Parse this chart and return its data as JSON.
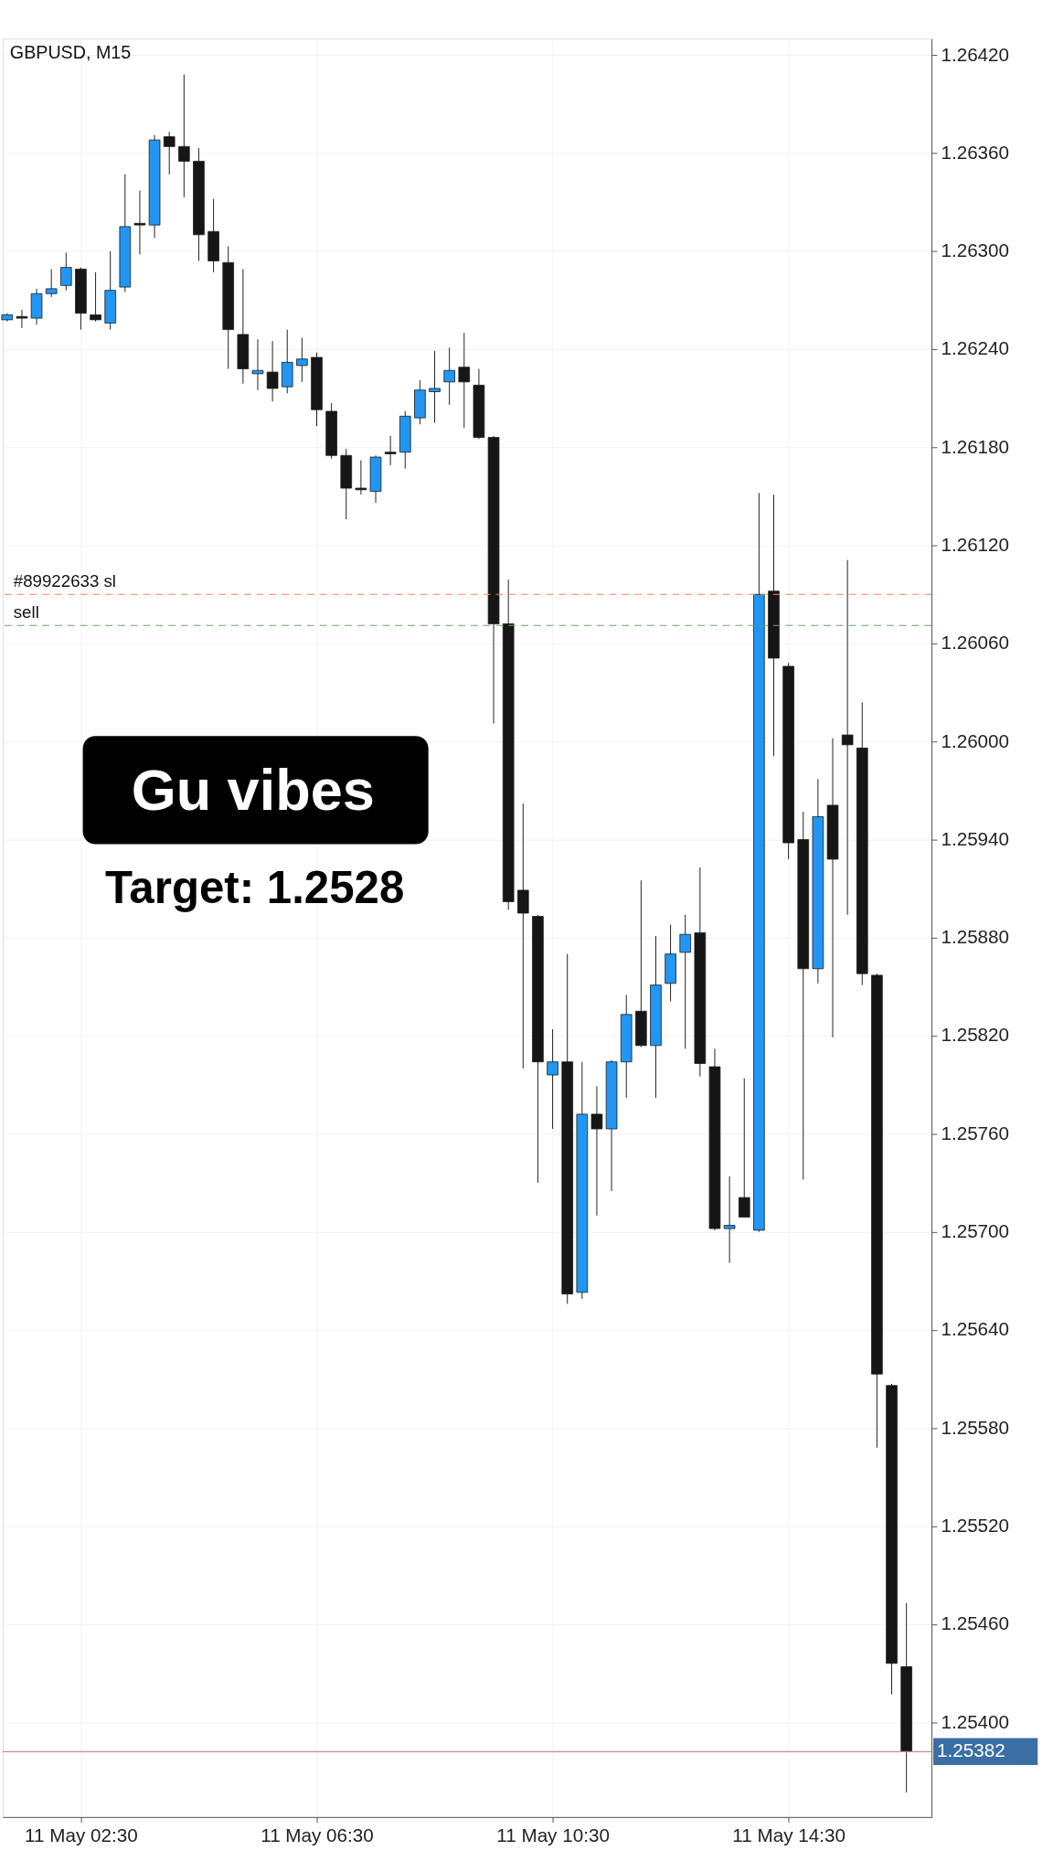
{
  "chart_data": {
    "type": "candlestick",
    "title": "GBPUSD, M15",
    "categories": [
      null,
      null,
      null,
      null,
      null,
      "11 May 02:30",
      null,
      null,
      null,
      null,
      null,
      null,
      null,
      null,
      null,
      null,
      null,
      null,
      null,
      null,
      null,
      "11 May 06:30",
      null,
      null,
      null,
      null,
      null,
      null,
      null,
      null,
      null,
      null,
      null,
      null,
      null,
      null,
      null,
      "11 May 10:30",
      null,
      null,
      null,
      null,
      null,
      null,
      null,
      null,
      null,
      null,
      null,
      null,
      null,
      null,
      null,
      "11 May 14:30",
      null,
      null,
      null,
      null,
      null,
      null,
      null,
      null
    ],
    "ohlc": [
      [
        1.26258,
        1.26262,
        1.26257,
        1.26261
      ],
      [
        1.2626,
        1.26264,
        1.26253,
        1.26259
      ],
      [
        1.26259,
        1.26277,
        1.26255,
        1.26274
      ],
      [
        1.26274,
        1.26289,
        1.26272,
        1.26277
      ],
      [
        1.26279,
        1.26299,
        1.26276,
        1.2629
      ],
      [
        1.26289,
        1.2629,
        1.26252,
        1.26262
      ],
      [
        1.26261,
        1.26287,
        1.26257,
        1.26258
      ],
      [
        1.26256,
        1.263,
        1.26252,
        1.26276
      ],
      [
        1.26278,
        1.26347,
        1.26275,
        1.26315
      ],
      [
        1.26317,
        1.26337,
        1.26298,
        1.26316
      ],
      [
        1.26316,
        1.26371,
        1.26308,
        1.26368
      ],
      [
        1.2637,
        1.26373,
        1.26347,
        1.26364
      ],
      [
        1.26364,
        1.26408,
        1.26333,
        1.26355
      ],
      [
        1.26355,
        1.26363,
        1.26294,
        1.2631
      ],
      [
        1.26312,
        1.26332,
        1.26287,
        1.26294
      ],
      [
        1.26293,
        1.26303,
        1.26228,
        1.26252
      ],
      [
        1.26249,
        1.26289,
        1.26219,
        1.26228
      ],
      [
        1.26225,
        1.26246,
        1.26215,
        1.26227
      ],
      [
        1.26226,
        1.26245,
        1.26208,
        1.26216
      ],
      [
        1.26217,
        1.26252,
        1.26213,
        1.26232
      ],
      [
        1.2623,
        1.26247,
        1.2622,
        1.26234
      ],
      [
        1.26235,
        1.26238,
        1.26193,
        1.26203
      ],
      [
        1.26202,
        1.26207,
        1.26173,
        1.26175
      ],
      [
        1.26175,
        1.26179,
        1.26136,
        1.26155
      ],
      [
        1.26155,
        1.26172,
        1.26151,
        1.26154
      ],
      [
        1.26153,
        1.26175,
        1.26146,
        1.26174
      ],
      [
        1.26177,
        1.26187,
        1.26169,
        1.26176
      ],
      [
        1.26177,
        1.26202,
        1.26167,
        1.26199
      ],
      [
        1.26198,
        1.26221,
        1.26194,
        1.26215
      ],
      [
        1.26214,
        1.26239,
        1.26195,
        1.26216
      ],
      [
        1.2622,
        1.26241,
        1.26206,
        1.26227
      ],
      [
        1.26229,
        1.2625,
        1.26192,
        1.2622
      ],
      [
        1.26218,
        1.26228,
        1.26185,
        1.26186
      ],
      [
        1.26186,
        1.26187,
        1.26011,
        1.26072
      ],
      [
        1.26072,
        1.26099,
        1.25897,
        1.25902
      ],
      [
        1.25909,
        1.25962,
        1.258,
        1.25895
      ],
      [
        1.25893,
        1.25894,
        1.2573,
        1.25804
      ],
      [
        1.25796,
        1.25824,
        1.25763,
        1.25804
      ],
      [
        1.25804,
        1.2587,
        1.25656,
        1.25662
      ],
      [
        1.25663,
        1.25804,
        1.25659,
        1.25772
      ],
      [
        1.25772,
        1.25789,
        1.2571,
        1.25763
      ],
      [
        1.25763,
        1.25805,
        1.25725,
        1.25804
      ],
      [
        1.25804,
        1.25845,
        1.25782,
        1.25833
      ],
      [
        1.25835,
        1.25915,
        1.25813,
        1.25814
      ],
      [
        1.25814,
        1.25881,
        1.25782,
        1.25851
      ],
      [
        1.25852,
        1.25888,
        1.25841,
        1.2587
      ],
      [
        1.25871,
        1.25894,
        1.25812,
        1.25882
      ],
      [
        1.25883,
        1.25923,
        1.25795,
        1.25803
      ],
      [
        1.25801,
        1.25812,
        1.25701,
        1.25702
      ],
      [
        1.25702,
        1.25734,
        1.25681,
        1.25704
      ],
      [
        1.25721,
        1.25794,
        1.25709,
        1.25709
      ],
      [
        1.25701,
        1.26152,
        1.257,
        1.2609
      ],
      [
        1.26092,
        1.26151,
        1.25991,
        1.26051
      ],
      [
        1.26046,
        1.26048,
        1.25928,
        1.25938
      ],
      [
        1.2594,
        1.25957,
        1.25732,
        1.25861
      ],
      [
        1.25861,
        1.25977,
        1.25852,
        1.25954
      ],
      [
        1.25961,
        1.26002,
        1.25819,
        1.25928
      ],
      [
        1.26004,
        1.26111,
        1.25894,
        1.25998
      ],
      [
        1.25996,
        1.26024,
        1.25851,
        1.25858
      ],
      [
        1.25857,
        1.25858,
        1.25568,
        1.25613
      ],
      [
        1.25606,
        1.25607,
        1.25417,
        1.25436
      ],
      [
        1.25434,
        1.25473,
        1.25357,
        1.25382
      ]
    ],
    "colors": [
      "#2196f3",
      "#161616",
      "#2196f3",
      "#2196f3",
      "#2196f3",
      "#161616",
      "#161616",
      "#2196f3",
      "#2196f3",
      "#161616",
      "#2196f3",
      "#161616",
      "#161616",
      "#161616",
      "#161616",
      "#161616",
      "#161616",
      "#2196f3",
      "#161616",
      "#2196f3",
      "#2196f3",
      "#161616",
      "#161616",
      "#161616",
      "#161616",
      "#2196f3",
      "#161616",
      "#2196f3",
      "#2196f3",
      "#2196f3",
      "#2196f3",
      "#161616",
      "#161616",
      "#161616",
      "#161616",
      "#161616",
      "#161616",
      "#2196f3",
      "#161616",
      "#2196f3",
      "#161616",
      "#2196f3",
      "#2196f3",
      "#161616",
      "#2196f3",
      "#2196f3",
      "#2196f3",
      "#161616",
      "#161616",
      "#2196f3",
      "#161616",
      "#2196f3",
      "#161616",
      "#161616",
      "#161616",
      "#2196f3",
      "#161616",
      "#161616",
      "#161616",
      "#161616",
      "#161616",
      "#161616"
    ],
    "ylim": [
      1.25342,
      1.2643
    ],
    "yticks": [
      {
        "value": 1.2642,
        "label": "1.26420"
      },
      {
        "value": 1.2636,
        "label": "1.26360"
      },
      {
        "value": 1.263,
        "label": "1.26300"
      },
      {
        "value": 1.2624,
        "label": "1.26240"
      },
      {
        "value": 1.2618,
        "label": "1.26180"
      },
      {
        "value": 1.2612,
        "label": "1.26120"
      },
      {
        "value": 1.2606,
        "label": "1.26060"
      },
      {
        "value": 1.26,
        "label": "1.26000"
      },
      {
        "value": 1.2594,
        "label": "1.25940"
      },
      {
        "value": 1.2588,
        "label": "1.25880"
      },
      {
        "value": 1.2582,
        "label": "1.25820"
      },
      {
        "value": 1.2576,
        "label": "1.25760"
      },
      {
        "value": 1.257,
        "label": "1.25700"
      },
      {
        "value": 1.2564,
        "label": "1.25640"
      },
      {
        "value": 1.2558,
        "label": "1.25580"
      },
      {
        "value": 1.2552,
        "label": "1.25520"
      },
      {
        "value": 1.2546,
        "label": "1.25460"
      },
      {
        "value": 1.254,
        "label": "1.25400"
      }
    ],
    "ref_lines": [
      {
        "axis": "y",
        "value": 1.2609,
        "label": "#89922633 sl",
        "color": "#f08a5d",
        "line_style": "dashed"
      },
      {
        "axis": "y",
        "value": 1.26071,
        "label": "sell",
        "color": "#6aa86a",
        "line_style": "dashed"
      },
      {
        "axis": "y",
        "value": 1.25382,
        "label": "1.25382",
        "color": "#c98a9a",
        "line_style": "solid"
      }
    ],
    "annotations": [
      "Gu vibes",
      "Target: 1.2528"
    ],
    "grid": true
  }
}
